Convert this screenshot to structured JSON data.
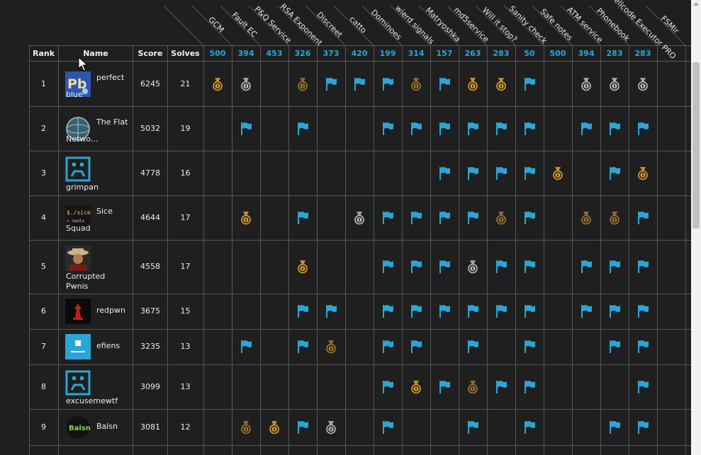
{
  "columns": {
    "rank": "Rank",
    "name": "Name",
    "score": "Score",
    "solves": "Solves"
  },
  "challenges": [
    {
      "name": "GCM",
      "points": "500"
    },
    {
      "name": "Fault EC",
      "points": "394"
    },
    {
      "name": "P&Q Service",
      "points": "453"
    },
    {
      "name": "RSA Exponent",
      "points": "326"
    },
    {
      "name": "Discreet",
      "points": "373"
    },
    {
      "name": "catto",
      "points": "420"
    },
    {
      "name": "Dominoes",
      "points": "199"
    },
    {
      "name": "wierd signals",
      "points": "314"
    },
    {
      "name": "Matryoshka",
      "points": "157"
    },
    {
      "name": "md5service",
      "points": "263"
    },
    {
      "name": "Will it stop?",
      "points": "283"
    },
    {
      "name": "Sanity check",
      "points": "50"
    },
    {
      "name": "Safe notes",
      "points": "500"
    },
    {
      "name": "ATM service",
      "points": "394"
    },
    {
      "name": "Phonebook",
      "points": "283"
    },
    {
      "name": "Shellcode Executor PRO",
      "points": "283"
    },
    {
      "name": "FSMir",
      "points": ""
    }
  ],
  "icon_legend": {
    "F": "flag-icon",
    "G": "gold-medal-icon",
    "S": "silver-medal-icon",
    "B": "bronze-medal-icon"
  },
  "colors": {
    "flag": "#2aa6d6",
    "gold": "#e3a228",
    "silver": "#bdbdbd",
    "bronze": "#a8762e",
    "background": "#1f1f1f",
    "grid": "#575757"
  },
  "teams": [
    {
      "rank": "1",
      "line1": "perfect",
      "line2": "blue",
      "score": "6245",
      "solves": "21",
      "avatar": "perfect-blue-avatar",
      "marks": "GS.BFFFBFGGF.SSS"
    },
    {
      "rank": "2",
      "line1": "The Flat",
      "line2": "Netwo...",
      "score": "5032",
      "solves": "19",
      "avatar": "flat-network-avatar",
      "marks": ".F.F..FFFFFF.FFF"
    },
    {
      "rank": "3",
      "line1": "",
      "line2": "grimpan",
      "score": "4778",
      "solves": "16",
      "avatar": "grimpan-avatar",
      "marks": "........FFFFG.FG"
    },
    {
      "rank": "4",
      "line1": "Sice",
      "line2": "Squad",
      "score": "4644",
      "solves": "17",
      "avatar": "sice-squad-avatar",
      "marks": ".G.F.SFFFFBF.BBF"
    },
    {
      "rank": "5",
      "line1": "",
      "line2": "Corrupted",
      "line3": "Pwnis",
      "score": "4558",
      "solves": "17",
      "avatar": "corrupted-pwnis-avatar",
      "marks": "...G..FFFSFF.FFF"
    },
    {
      "rank": "6",
      "line1": "redpwn",
      "line2": "",
      "score": "3675",
      "solves": "15",
      "avatar": "redpwn-avatar",
      "marks": "...FF.FFFFFF.FFF"
    },
    {
      "rank": "7",
      "line1": "efiens",
      "line2": "",
      "score": "3235",
      "solves": "13",
      "avatar": "efiens-avatar",
      "marks": ".F.FB.FF.F.F..FF"
    },
    {
      "rank": "8",
      "line1": "",
      "line2": "excusemewtf",
      "score": "3099",
      "solves": "13",
      "avatar": "excusemewtf-avatar",
      "marks": "......FGFBFF...F"
    },
    {
      "rank": "9",
      "line1": "Balsn",
      "line2": "",
      "score": "3081",
      "solves": "12",
      "avatar": "balsn-avatar",
      "marks": ".BGFS.F..F.F..FF"
    }
  ]
}
